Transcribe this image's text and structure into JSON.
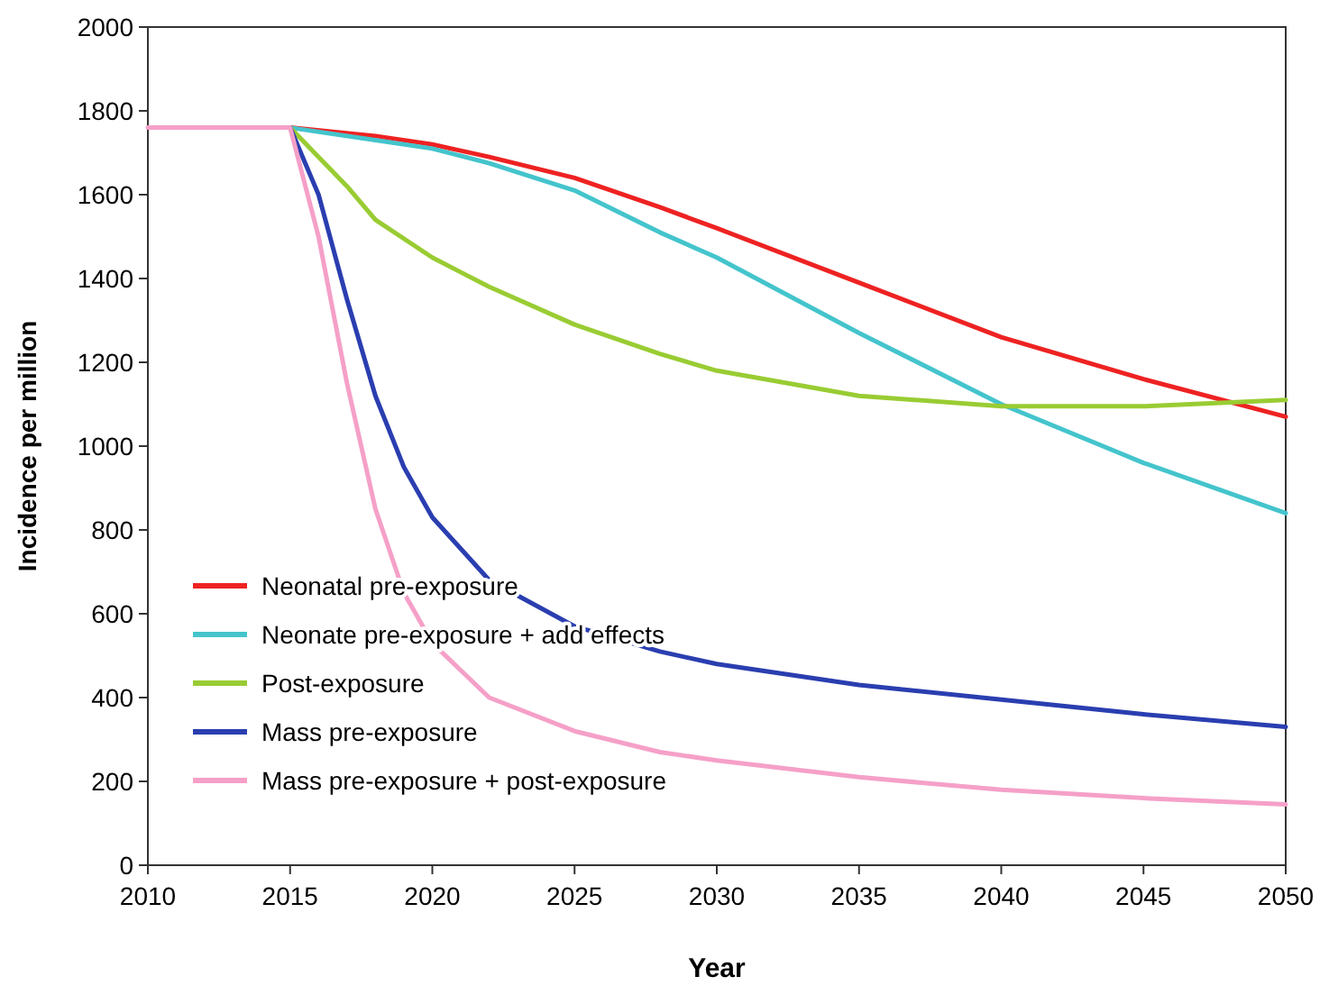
{
  "chart_data": {
    "type": "line",
    "xlabel": "Year",
    "ylabel": "Incidence per million",
    "xlim": [
      2010,
      2050
    ],
    "xticks": [
      2010,
      2015,
      2020,
      2025,
      2030,
      2035,
      2040,
      2045,
      2050
    ],
    "ylim": [
      0,
      2000
    ],
    "yticks": [
      0,
      200,
      400,
      600,
      800,
      1000,
      1200,
      1400,
      1600,
      1800,
      2000
    ],
    "grid": false,
    "legend": "bottom left",
    "marker": "none",
    "line_style": "solid",
    "series": [
      {
        "name": "Neonatal pre-exposure",
        "color": "#ee2222",
        "x": [
          2015,
          2018,
          2020,
          2022,
          2025,
          2028,
          2030,
          2035,
          2040,
          2045,
          2050
        ],
        "values": [
          1760,
          1740,
          1720,
          1690,
          1640,
          1570,
          1520,
          1390,
          1260,
          1160,
          1070
        ]
      },
      {
        "name": "Neonate pre-exposure + add effects",
        "color": "#44c4cc",
        "x": [
          2015,
          2018,
          2020,
          2022,
          2025,
          2028,
          2030,
          2035,
          2040,
          2045,
          2050
        ],
        "values": [
          1760,
          1730,
          1710,
          1675,
          1610,
          1510,
          1450,
          1270,
          1100,
          960,
          840
        ]
      },
      {
        "name": "Post-exposure",
        "color": "#99cc33",
        "x": [
          2015,
          2016,
          2017,
          2018,
          2020,
          2022,
          2025,
          2028,
          2030,
          2035,
          2040,
          2045,
          2050
        ],
        "values": [
          1760,
          1690,
          1620,
          1540,
          1450,
          1380,
          1290,
          1220,
          1180,
          1120,
          1095,
          1095,
          1110
        ]
      },
      {
        "name": "Mass pre-exposure",
        "color": "#2a3eb0",
        "x": [
          2015,
          2016,
          2017,
          2018,
          2019,
          2020,
          2022,
          2025,
          2028,
          2030,
          2035,
          2040,
          2045,
          2050
        ],
        "values": [
          1760,
          1600,
          1350,
          1120,
          950,
          830,
          680,
          570,
          510,
          480,
          430,
          395,
          360,
          330
        ]
      },
      {
        "name": "Mass pre-exposure + post-exposure",
        "color": "#f5a0c8",
        "x": [
          2010,
          2015,
          2016,
          2017,
          2018,
          2019,
          2020,
          2022,
          2025,
          2028,
          2030,
          2035,
          2040,
          2045,
          2050
        ],
        "values": [
          1760,
          1760,
          1500,
          1150,
          850,
          650,
          530,
          400,
          320,
          270,
          250,
          210,
          180,
          160,
          145
        ]
      }
    ]
  }
}
